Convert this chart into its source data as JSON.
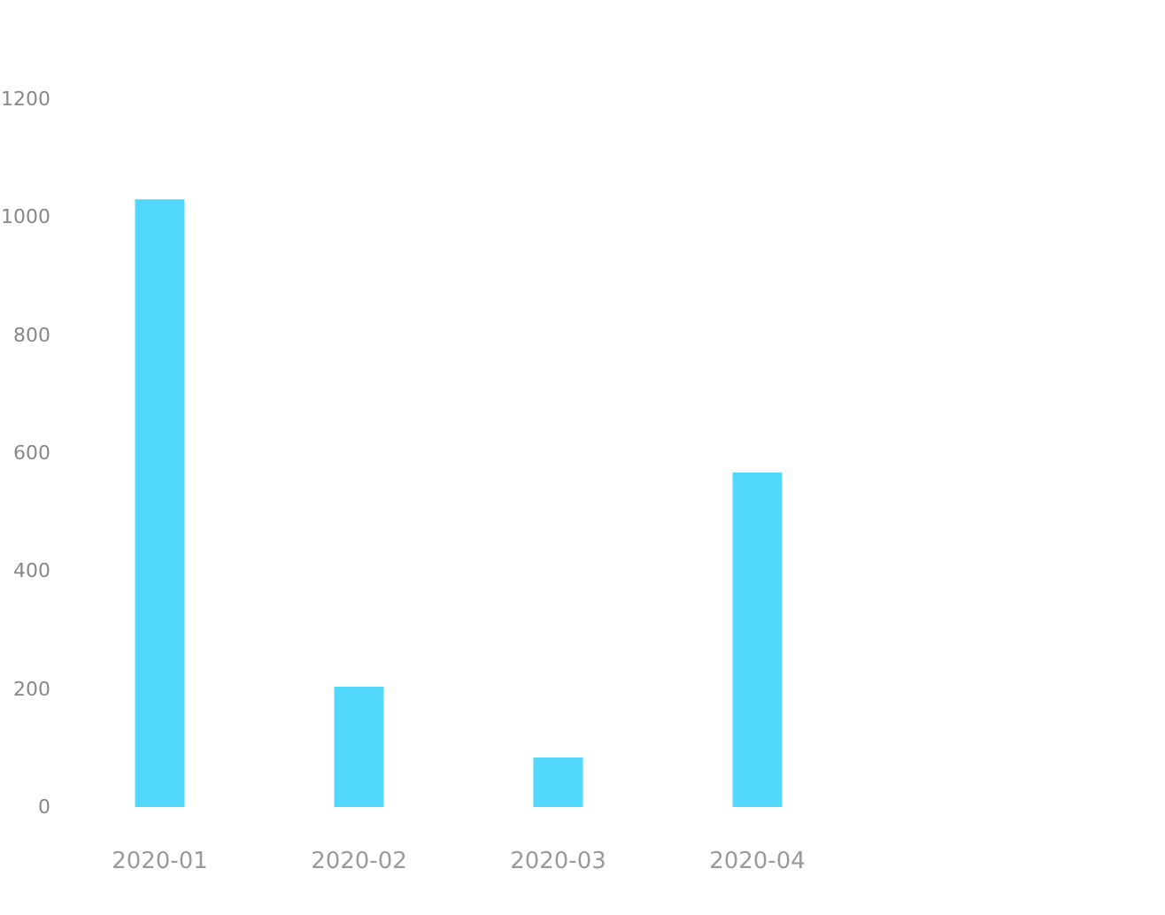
{
  "chart_data": {
    "type": "bar",
    "categories": [
      "2020-01",
      "2020-02",
      "2020-03",
      "2020-04"
    ],
    "values": [
      1030,
      204,
      84,
      567
    ],
    "color": "#52d8fc",
    "ylim": [
      0,
      1200
    ],
    "yticks": [
      0,
      200,
      400,
      600,
      800,
      1000,
      1200
    ],
    "grid": false
  }
}
